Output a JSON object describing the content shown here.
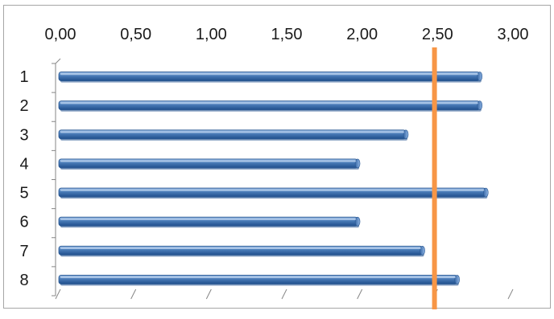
{
  "chart_data": {
    "type": "bar",
    "orientation": "horizontal",
    "categories": [
      "1",
      "2",
      "3",
      "4",
      "5",
      "6",
      "7",
      "8"
    ],
    "values": [
      2.78,
      2.78,
      2.29,
      1.97,
      2.82,
      1.97,
      2.4,
      2.63
    ],
    "x_ticks": [
      "0,00",
      "0,50",
      "1,00",
      "1,50",
      "2,00",
      "2,50",
      "3,00"
    ],
    "xlim": [
      0,
      3
    ],
    "x_axis_position": "top",
    "grid": false,
    "legend": "none",
    "reference_line": {
      "value": 2.48,
      "color": "#f79646"
    },
    "colors": {
      "bar": "#4f81bd",
      "bar_dark": "#1f4e8c",
      "bar_light": "#8db3e2",
      "axis": "#868686"
    }
  }
}
